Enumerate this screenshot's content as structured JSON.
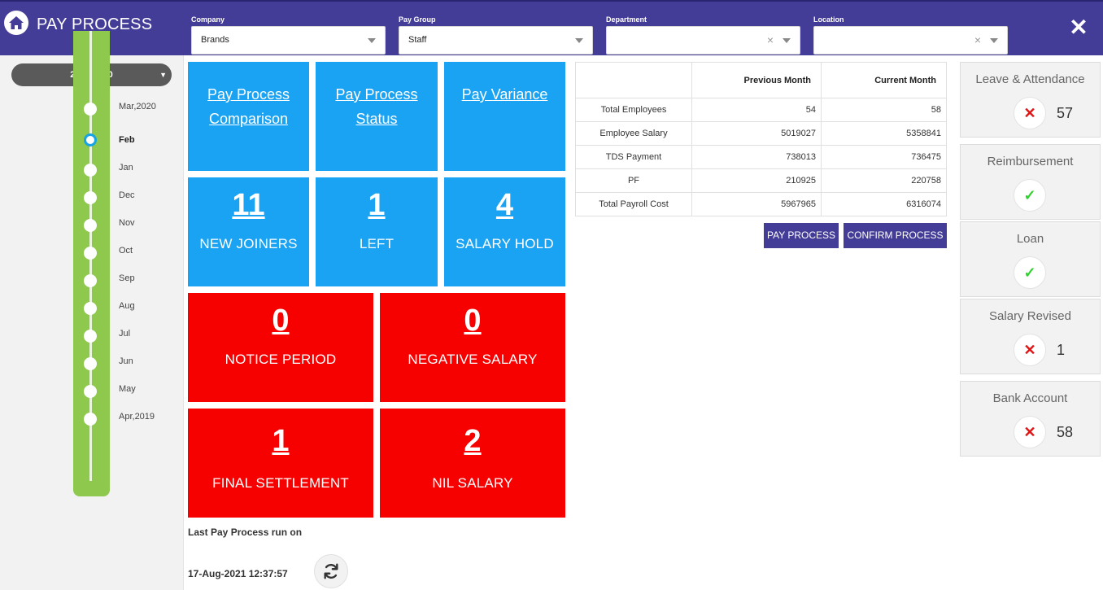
{
  "header": {
    "title": "PAY PROCESS",
    "close_glyph": "✕",
    "filters": [
      {
        "label": "Company",
        "value": ""
      },
      {
        "label": "Pay Group",
        "value": ""
      },
      {
        "label": "Department",
        "value": ""
      },
      {
        "label": "Location",
        "value": ""
      }
    ],
    "company": {
      "label": "Company",
      "value": "Brands"
    },
    "pay_group": {
      "label": "Pay Group",
      "value": "Staff"
    },
    "department": {
      "label": "Department",
      "value": "",
      "clear": "×"
    },
    "location": {
      "label": "Location",
      "value": "",
      "clear": "×"
    }
  },
  "timeline": {
    "year": "2019-2020",
    "year_caret": "▼",
    "months": [
      "Mar,2020",
      "Feb",
      "Jan",
      "Dec",
      "Nov",
      "Oct",
      "Sep",
      "Aug",
      "Jul",
      "Jun",
      "May",
      "Apr,2019"
    ],
    "active_month": "Feb"
  },
  "tiles": {
    "pay_process_comparison": {
      "line1": "Pay Process",
      "line2": "Comparison"
    },
    "pay_process_status": {
      "line1": "Pay Process",
      "line2": "Status"
    },
    "pay_variance": {
      "label": "Pay Variance"
    },
    "new_joiners": {
      "count": "11",
      "label": "NEW JOINERS"
    },
    "left": {
      "count": "1",
      "label": "LEFT"
    },
    "salary_hold": {
      "count": "4",
      "label": "SALARY HOLD"
    },
    "notice_period": {
      "count": "0",
      "label": "NOTICE PERIOD"
    },
    "negative_salary": {
      "count": "0",
      "label": "NEGATIVE SALARY"
    },
    "final_settlement": {
      "count": "1",
      "label": "FINAL SETTLEMENT"
    },
    "nil_salary": {
      "count": "2",
      "label": "NIL SALARY"
    }
  },
  "last_run": {
    "label": "Last Pay Process run on",
    "time": "17-Aug-2021 12:37:57"
  },
  "comparison": {
    "headers": [
      "",
      "Previous Month",
      "Current Month"
    ],
    "rows": [
      {
        "label": "Total Employees",
        "prev": "54",
        "curr": "58"
      },
      {
        "label": "Employee Salary",
        "prev": "5019027",
        "curr": "5358841"
      },
      {
        "label": "TDS Payment",
        "prev": "738013",
        "curr": "736475"
      },
      {
        "label": "PF",
        "prev": "210925",
        "curr": "220758"
      },
      {
        "label": "Total Payroll Cost",
        "prev": "5967965",
        "curr": "6316074"
      }
    ]
  },
  "actions": {
    "pay_process": "PAY PROCESS",
    "confirm_process": "CONFIRM PROCESS"
  },
  "cards": [
    {
      "title": "Leave & Attendance",
      "status": "x",
      "glyph": "✕",
      "count": "57"
    },
    {
      "title": "Reimbursement",
      "status": "ok",
      "glyph": "✓",
      "count": ""
    },
    {
      "title": "Loan",
      "status": "ok",
      "glyph": "✓",
      "count": ""
    },
    {
      "title": "Salary Revised",
      "status": "x",
      "glyph": "✕",
      "count": "1"
    },
    {
      "title": "Bank Account",
      "status": "x",
      "glyph": "✕",
      "count": "58"
    }
  ],
  "colors": {
    "header": "#443d98",
    "tile_blue": "#1aa3f2",
    "tile_red": "#f70000",
    "timeline_green": "#8ec94d",
    "active_dot": "#17a3e6"
  }
}
